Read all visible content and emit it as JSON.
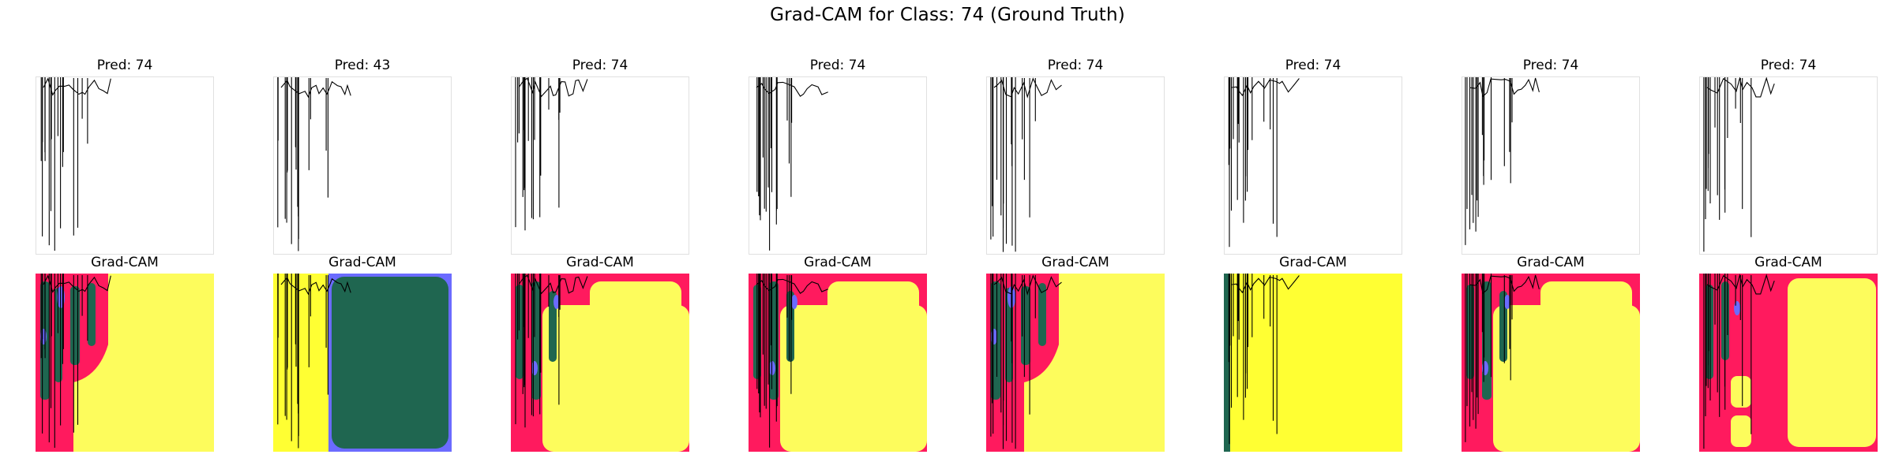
{
  "chart_data": {
    "type": "heatmap",
    "title": "Grad-CAM for Class: 74 (Ground Truth)",
    "colors": {
      "background": "#ffffff",
      "ink": "#000000",
      "cam_low": "#ffff33",
      "cam_mid": "#ff1a5e",
      "cam_high": "#1f6650",
      "cam_peak": "#6b6bff",
      "cam_soft": "#fdfc5c"
    },
    "samples": [
      {
        "pred_label": "Pred: 74",
        "cam_label": "Grad-CAM",
        "cam_style": "left-bands"
      },
      {
        "pred_label": "Pred: 43",
        "cam_label": "Grad-CAM",
        "cam_style": "center-block"
      },
      {
        "pred_label": "Pred: 74",
        "cam_label": "Grad-CAM",
        "cam_style": "corner-frame"
      },
      {
        "pred_label": "Pred: 74",
        "cam_label": "Grad-CAM",
        "cam_style": "corner-frame"
      },
      {
        "pred_label": "Pred: 74",
        "cam_label": "Grad-CAM",
        "cam_style": "left-bands"
      },
      {
        "pred_label": "Pred: 74",
        "cam_label": "Grad-CAM",
        "cam_style": "plain"
      },
      {
        "pred_label": "Pred: 74",
        "cam_label": "Grad-CAM",
        "cam_style": "corner-frame"
      },
      {
        "pred_label": "Pred: 74",
        "cam_label": "Grad-CAM",
        "cam_style": "right-block"
      }
    ]
  }
}
